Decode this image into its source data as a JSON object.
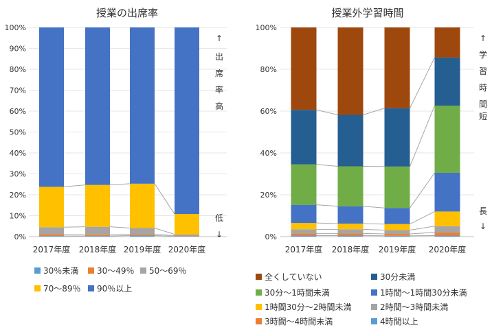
{
  "colors": {
    "left_bands": [
      "#5B9BD5",
      "#ED7D31",
      "#A5A5A5",
      "#FFC000",
      "#4472C4"
    ],
    "right_bands": [
      "#5B9BD5",
      "#ED7D31",
      "#A5A5A5",
      "#FFC000",
      "#4472C4",
      "#70AD47",
      "#255E91",
      "#9E480E"
    ]
  },
  "chart_data": [
    {
      "type": "bar",
      "stacked": true,
      "title": "授業の出席率",
      "categories": [
        "2017年度",
        "2018年度",
        "2019年度",
        "2020年度"
      ],
      "ylim": [
        0,
        100
      ],
      "yticks": [
        "0%",
        "10%",
        "20%",
        "30%",
        "40%",
        "50%",
        "60%",
        "70%",
        "80%",
        "90%",
        "100%"
      ],
      "series": [
        {
          "name": "30％未満",
          "values": [
            0.3,
            0.3,
            0.5,
            0.2
          ]
        },
        {
          "name": "30～49％",
          "values": [
            0.7,
            0.6,
            0.6,
            0.3
          ]
        },
        {
          "name": "50～69％",
          "values": [
            3.5,
            3.8,
            3.0,
            0.6
          ]
        },
        {
          "name": "70～89％",
          "values": [
            19.3,
            20.0,
            21.2,
            9.7
          ]
        },
        {
          "name": "90％以上",
          "values": [
            76.2,
            75.3,
            74.7,
            89.2
          ]
        }
      ],
      "side_top": [
        "↑",
        "出",
        "席",
        "率",
        "高"
      ],
      "side_bottom": [
        "低",
        "↓"
      ]
    },
    {
      "type": "bar",
      "stacked": true,
      "title": "授業外学習時間",
      "categories": [
        "2017年度",
        "2018年度",
        "2019年度",
        "2020年度"
      ],
      "ylim": [
        0,
        100
      ],
      "yticks": [
        "0%",
        "20%",
        "40%",
        "60%",
        "80%",
        "100%"
      ],
      "series": [
        {
          "name": "4時間以上",
          "values": [
            0.5,
            0.5,
            0.4,
            0.5
          ]
        },
        {
          "name": "3時間～4時間未満",
          "values": [
            1.0,
            1.0,
            0.9,
            1.5
          ]
        },
        {
          "name": "2時間～3時間未満",
          "values": [
            2.0,
            2.0,
            1.8,
            3.0
          ]
        },
        {
          "name": "1時間30分～2時間未満",
          "values": [
            3.0,
            2.7,
            2.9,
            7.0
          ]
        },
        {
          "name": "1時間～1時間30分未満",
          "values": [
            8.7,
            8.3,
            7.7,
            18.5
          ]
        },
        {
          "name": "30分～1時間未満",
          "values": [
            19.3,
            19.1,
            19.8,
            32.1
          ]
        },
        {
          "name": "30分未満",
          "values": [
            26.1,
            24.6,
            27.9,
            23.0
          ]
        },
        {
          "name": "全くしていない",
          "values": [
            39.4,
            41.8,
            38.6,
            14.4
          ]
        }
      ],
      "side_top": [
        "↑",
        "学",
        "習",
        "時",
        "間",
        "短"
      ],
      "side_bottom": [
        "長",
        "↓"
      ]
    }
  ]
}
